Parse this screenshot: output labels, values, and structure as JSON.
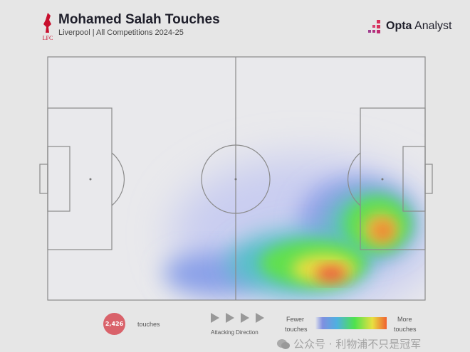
{
  "header": {
    "title": "Mohamed Salah Touches",
    "subtitle": "Liverpool | All Competitions 2024-25",
    "club_logo": "LFC",
    "brand_bold": "Opta",
    "brand_light": " Analyst"
  },
  "legend": {
    "touch_count": "2,426",
    "touch_label": "touches",
    "direction_label": "Attacking Direction",
    "fewer": "Fewer",
    "fewer2": "touches",
    "more": "More",
    "more2": "touches"
  },
  "watermark": "公众号 · 利物浦不只是冠军",
  "colors": {
    "badge": "#d9626a",
    "scale": [
      "#7f8fe0",
      "#4fb0e0",
      "#4ee24e",
      "#e8e040",
      "#f06030"
    ]
  },
  "chart_data": {
    "type": "heatmap",
    "title": "Mohamed Salah Touches",
    "subtitle": "Liverpool | All Competitions 2024-25",
    "direction": "left-to-right",
    "total_touches": 2426,
    "hotspots": [
      {
        "zone": "right half-space near box",
        "intensity": "high"
      },
      {
        "zone": "right edge of penalty box",
        "intensity": "high"
      },
      {
        "zone": "right wing attacking half",
        "intensity": "medium"
      },
      {
        "zone": "right wing own half",
        "intensity": "low"
      }
    ]
  }
}
